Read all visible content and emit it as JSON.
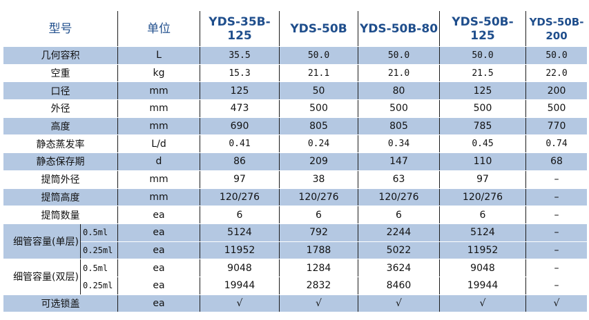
{
  "header": {
    "model": "型号",
    "unit": "单位",
    "models": [
      "YDS-35B-125",
      "YDS-50B",
      "YDS-50B-80",
      "YDS-50B-125",
      "YDS-50B-200"
    ]
  },
  "rows": [
    {
      "label": "几何容积",
      "unit": "L",
      "values": [
        "35.5",
        "50.0",
        "50.0",
        "50.0",
        "50.0"
      ]
    },
    {
      "label": "空重",
      "unit": "kg",
      "values": [
        "15.3",
        "21.1",
        "21.0",
        "21.5",
        "22.0"
      ]
    },
    {
      "label": "口径",
      "unit": "mm",
      "values": [
        "125",
        "50",
        "80",
        "125",
        "200"
      ]
    },
    {
      "label": "外径",
      "unit": "mm",
      "values": [
        "473",
        "500",
        "500",
        "500",
        "500"
      ]
    },
    {
      "label": "高度",
      "unit": "mm",
      "values": [
        "690",
        "805",
        "805",
        "785",
        "770"
      ]
    },
    {
      "label": "静态蒸发率",
      "unit": "L/d",
      "values": [
        "0.41",
        "0.24",
        "0.34",
        "0.45",
        "0.74"
      ]
    },
    {
      "label": "静态保存期",
      "unit": "d",
      "values": [
        "86",
        "209",
        "147",
        "110",
        "68"
      ]
    },
    {
      "label": "提筒外径",
      "unit": "mm",
      "values": [
        "97",
        "38",
        "63",
        "97",
        "–"
      ]
    },
    {
      "label": "提筒高度",
      "unit": "mm",
      "values": [
        "120/276",
        "120/276",
        "120/276",
        "120/276",
        "–"
      ]
    },
    {
      "label": "提筒数量",
      "unit": "ea",
      "values": [
        "6",
        "6",
        "6",
        "6",
        "–"
      ]
    }
  ],
  "straw_single": {
    "label": "细管容量(单层)",
    "sub": [
      {
        "size": "0.5ml",
        "unit": "ea",
        "values": [
          "5124",
          "792",
          "2244",
          "5124",
          "–"
        ]
      },
      {
        "size": "0.25ml",
        "unit": "ea",
        "values": [
          "11952",
          "1788",
          "5022",
          "11952",
          "–"
        ]
      }
    ]
  },
  "straw_double": {
    "label": "细管容量(双层)",
    "sub": [
      {
        "size": "0.5ml",
        "unit": "ea",
        "values": [
          "9048",
          "1284",
          "3624",
          "9048",
          "–"
        ]
      },
      {
        "size": "0.25ml",
        "unit": "ea",
        "values": [
          "19944",
          "2832",
          "8460",
          "19944",
          "–"
        ]
      }
    ]
  },
  "lock": {
    "label": "可选锁盖",
    "unit": "ea",
    "values": [
      "√",
      "√",
      "√",
      "√",
      "√"
    ]
  }
}
